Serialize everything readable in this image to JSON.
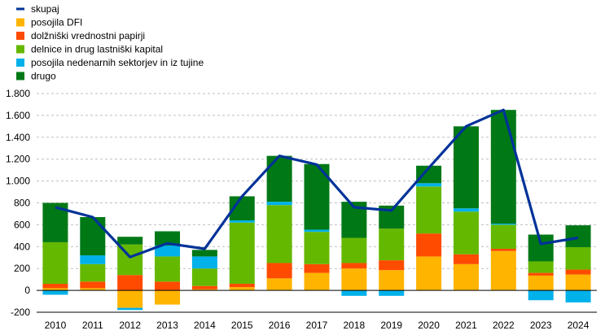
{
  "chart_data": {
    "type": "bar",
    "stacked": true,
    "categories": [
      "2010",
      "2011",
      "2012",
      "2013",
      "2014",
      "2015",
      "2016",
      "2017",
      "2018",
      "2019",
      "2020",
      "2021",
      "2022",
      "2023",
      "2024"
    ],
    "ylim": [
      -200,
      1800
    ],
    "yticks": [
      -200,
      0,
      200,
      400,
      600,
      800,
      1000,
      1200,
      1400,
      1600,
      1800
    ],
    "ytick_labels": [
      "-200",
      "0",
      "200",
      "400",
      "600",
      "800",
      "1.000",
      "1.200",
      "1.400",
      "1.600",
      "1.800"
    ],
    "grid": "horizontal",
    "legend_position": "top-left",
    "series": [
      {
        "name": "posojila DFI",
        "color": "#FFB400",
        "values": [
          20,
          20,
          -160,
          -130,
          10,
          30,
          110,
          160,
          200,
          185,
          310,
          240,
          360,
          135,
          145
        ]
      },
      {
        "name": "dolžniški vrednostni papirji",
        "color": "#FF4B00",
        "values": [
          40,
          60,
          140,
          80,
          30,
          30,
          140,
          80,
          50,
          90,
          210,
          90,
          20,
          25,
          45
        ]
      },
      {
        "name": "delnice in drug lastniški kapital",
        "color": "#65B800",
        "values": [
          380,
          160,
          280,
          230,
          160,
          560,
          530,
          295,
          230,
          290,
          430,
          390,
          220,
          105,
          205
        ]
      },
      {
        "name": "posojila nedenarnih sektorjev in iz tujine",
        "color": "#00B1EA",
        "values": [
          -40,
          80,
          -20,
          100,
          110,
          20,
          30,
          20,
          -50,
          -50,
          30,
          30,
          10,
          -90,
          -110
        ]
      },
      {
        "name": "drugo",
        "color": "#007816",
        "values": [
          360,
          350,
          70,
          130,
          60,
          220,
          420,
          600,
          330,
          210,
          160,
          750,
          1040,
          245,
          200
        ]
      }
    ],
    "line": {
      "name": "skupaj",
      "color": "#003299",
      "values": [
        760,
        670,
        305,
        430,
        380,
        860,
        1230,
        1150,
        760,
        730,
        1120,
        1500,
        1650,
        425,
        480
      ]
    }
  }
}
